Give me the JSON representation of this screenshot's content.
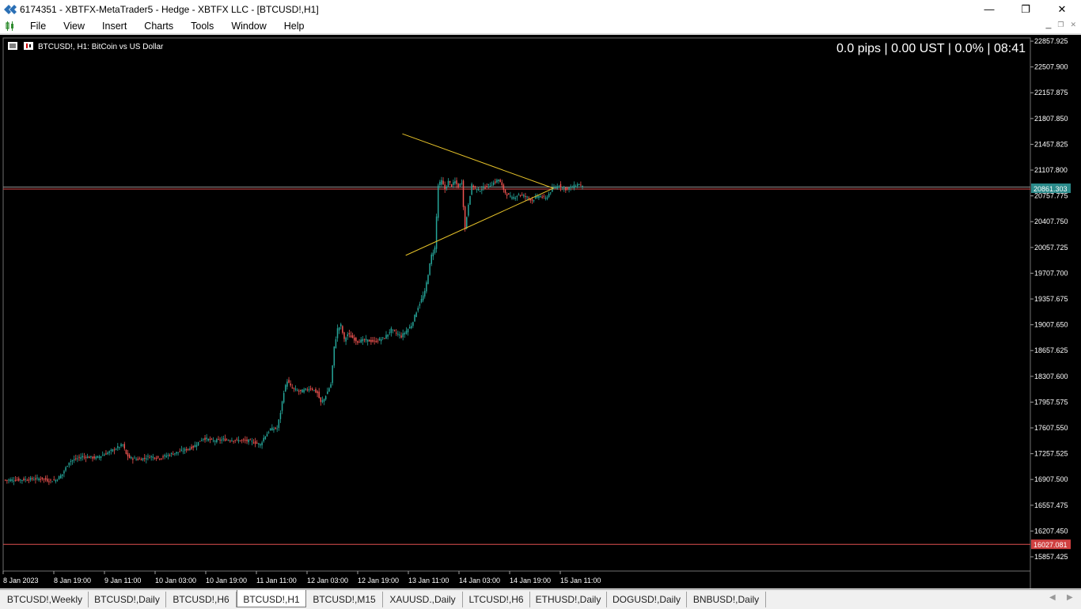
{
  "window": {
    "title": "6174351 - XBTFX-MetaTrader5 - Hedge - XBTFX LLC - [BTCUSD!,H1]",
    "minimize_glyph": "—",
    "maximize_glyph": "❐",
    "close_glyph": "✕"
  },
  "menu": {
    "items": [
      "File",
      "View",
      "Insert",
      "Charts",
      "Tools",
      "Window",
      "Help"
    ]
  },
  "chart": {
    "symbol_label": "BTCUSD!, H1:  BitCoin vs US Dollar",
    "info_label": "0.0 pips | 0.00 UST | 0.0% | 08:41",
    "current_price_label": "20861.303",
    "lower_line_label": "16027.081",
    "colors": {
      "bull": "#26a69a",
      "bear": "#ef5350",
      "triangle": "#e6c229",
      "bid_line": "#e05050",
      "ask_line": "#909090"
    }
  },
  "chart_data": {
    "type": "candlestick",
    "symbol": "BTCUSD!",
    "timeframe": "H1",
    "y_ticks": [
      "22857.925",
      "22507.900",
      "22157.875",
      "21807.850",
      "21457.825",
      "21107.800",
      "20757.775",
      "20407.750",
      "20057.725",
      "19707.700",
      "19357.675",
      "19007.650",
      "18657.625",
      "18307.600",
      "17957.575",
      "17607.550",
      "17257.525",
      "16907.500",
      "16557.475",
      "16207.450",
      "15857.425"
    ],
    "x_ticks": [
      "8 Jan 2023",
      "8 Jan 19:00",
      "9 Jan 11:00",
      "10 Jan 03:00",
      "10 Jan 19:00",
      "11 Jan 11:00",
      "12 Jan 03:00",
      "12 Jan 19:00",
      "13 Jan 11:00",
      "14 Jan 03:00",
      "14 Jan 19:00",
      "15 Jan 11:00"
    ],
    "ylim": [
      15750,
      22880
    ],
    "current_price": 20861.303,
    "horizontal_line": 16027.081,
    "close_path": [
      [
        0,
        16900
      ],
      [
        10,
        16905
      ],
      [
        18,
        16915
      ],
      [
        22,
        16920
      ],
      [
        26,
        16890
      ],
      [
        30,
        16900
      ],
      [
        34,
        16980
      ],
      [
        38,
        17150
      ],
      [
        46,
        17220
      ],
      [
        54,
        17200
      ],
      [
        62,
        17280
      ],
      [
        66,
        17330
      ],
      [
        70,
        17380
      ],
      [
        72,
        17250
      ],
      [
        74,
        17200
      ],
      [
        80,
        17180
      ],
      [
        86,
        17220
      ],
      [
        92,
        17200
      ],
      [
        100,
        17260
      ],
      [
        106,
        17300
      ],
      [
        112,
        17350
      ],
      [
        118,
        17470
      ],
      [
        124,
        17430
      ],
      [
        130,
        17450
      ],
      [
        138,
        17440
      ],
      [
        146,
        17430
      ],
      [
        152,
        17380
      ],
      [
        154,
        17470
      ],
      [
        158,
        17590
      ],
      [
        162,
        17600
      ],
      [
        164,
        17820
      ],
      [
        166,
        18100
      ],
      [
        168,
        18250
      ],
      [
        170,
        18170
      ],
      [
        172,
        18130
      ],
      [
        176,
        18100
      ],
      [
        182,
        18150
      ],
      [
        186,
        18080
      ],
      [
        188,
        17950
      ],
      [
        190,
        18000
      ],
      [
        194,
        18200
      ],
      [
        196,
        18700
      ],
      [
        198,
        18950
      ],
      [
        200,
        19000
      ],
      [
        202,
        18800
      ],
      [
        204,
        18880
      ],
      [
        210,
        18780
      ],
      [
        214,
        18800
      ],
      [
        220,
        18780
      ],
      [
        226,
        18830
      ],
      [
        230,
        18940
      ],
      [
        236,
        18850
      ],
      [
        242,
        19000
      ],
      [
        246,
        19250
      ],
      [
        250,
        19450
      ],
      [
        252,
        19700
      ],
      [
        254,
        19950
      ],
      [
        256,
        20050
      ],
      [
        258,
        20900
      ],
      [
        260,
        20960
      ],
      [
        262,
        20850
      ],
      [
        264,
        20950
      ],
      [
        266,
        20900
      ],
      [
        268,
        20950
      ],
      [
        270,
        20880
      ],
      [
        272,
        20950
      ],
      [
        274,
        20300
      ],
      [
        276,
        20650
      ],
      [
        278,
        20900
      ],
      [
        282,
        20830
      ],
      [
        286,
        20880
      ],
      [
        290,
        20920
      ],
      [
        294,
        20980
      ],
      [
        298,
        20800
      ],
      [
        302,
        20720
      ],
      [
        306,
        20780
      ],
      [
        310,
        20750
      ],
      [
        314,
        20700
      ],
      [
        318,
        20760
      ],
      [
        322,
        20720
      ],
      [
        326,
        20850
      ],
      [
        330,
        20900
      ],
      [
        334,
        20850
      ],
      [
        338,
        20880
      ],
      [
        342,
        20920
      ],
      [
        344,
        20880
      ]
    ],
    "triangle": {
      "upper": [
        [
          237,
          21600
        ],
        [
          327,
          20861
        ]
      ],
      "lower": [
        [
          239,
          19950
        ],
        [
          327,
          20861
        ]
      ]
    },
    "n_bars": 356
  },
  "tabs": {
    "items": [
      "BTCUSD!,Weekly",
      "BTCUSD!,Daily",
      "BTCUSD!,H6",
      "BTCUSD!,H1",
      "BTCUSD!,M15",
      "XAUUSD.,Daily",
      "LTCUSD!,H6",
      "ETHUSD!,Daily",
      "DOGUSD!,Daily",
      "BNBUSD!,Daily"
    ],
    "active_index": 3,
    "nav_left": "◀",
    "nav_right": "▶"
  }
}
